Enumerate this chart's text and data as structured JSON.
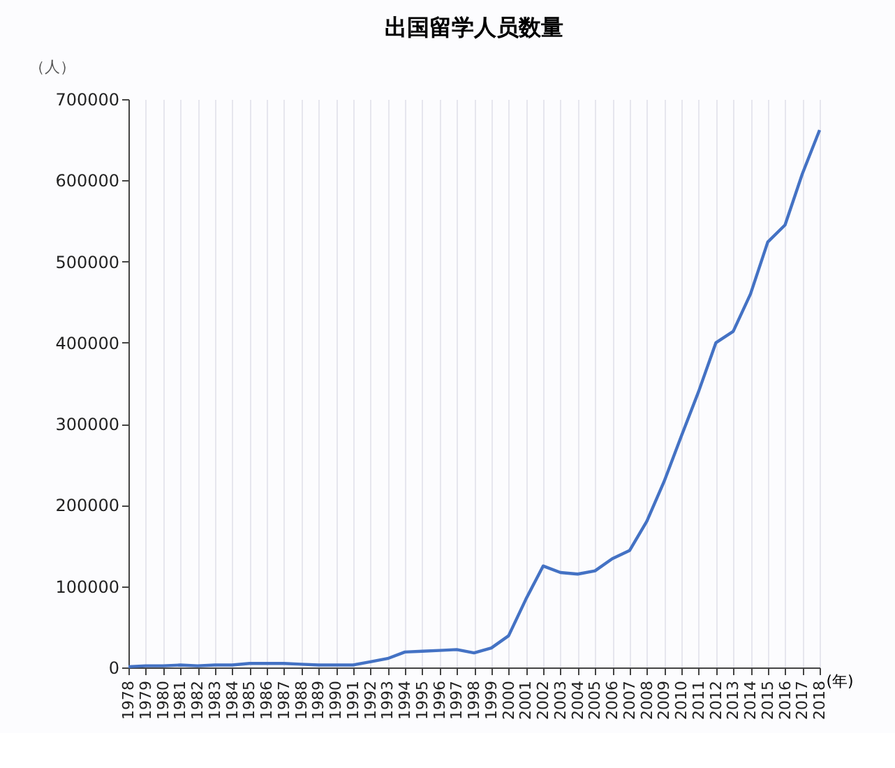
{
  "chart_data": {
    "type": "line",
    "title": "出国留学人员数量",
    "ylabel": "（人）",
    "xlabel": "(年)",
    "categories": [
      "1978",
      "1979",
      "1980",
      "1981",
      "1982",
      "1983",
      "1984",
      "1985",
      "1986",
      "1987",
      "1988",
      "1989",
      "1990",
      "1991",
      "1992",
      "1993",
      "1994",
      "1995",
      "1996",
      "1997",
      "1998",
      "1999",
      "2000",
      "2001",
      "2002",
      "2003",
      "2004",
      "2005",
      "2006",
      "2007",
      "2008",
      "2009",
      "2010",
      "2011",
      "2012",
      "2013",
      "2014",
      "2015",
      "2016",
      "2017",
      "2018"
    ],
    "series": [
      {
        "color": "#4472c4",
        "values": [
          1000,
          2000,
          2000,
          3000,
          2000,
          3000,
          3000,
          5000,
          5000,
          5000,
          4000,
          3000,
          3000,
          3000,
          7000,
          11000,
          19000,
          20000,
          21000,
          22000,
          18000,
          24000,
          39000,
          84000,
          125000,
          117000,
          115000,
          119000,
          134000,
          144000,
          180000,
          229000,
          285000,
          340000,
          400000,
          414000,
          460000,
          524000,
          545000,
          608000,
          662000
        ]
      }
    ],
    "ylim": [
      0,
      700000
    ],
    "yticks": [
      0,
      100000,
      200000,
      300000,
      400000,
      500000,
      600000,
      700000
    ],
    "grid": "x",
    "marker": "none",
    "line_style": "solid"
  }
}
